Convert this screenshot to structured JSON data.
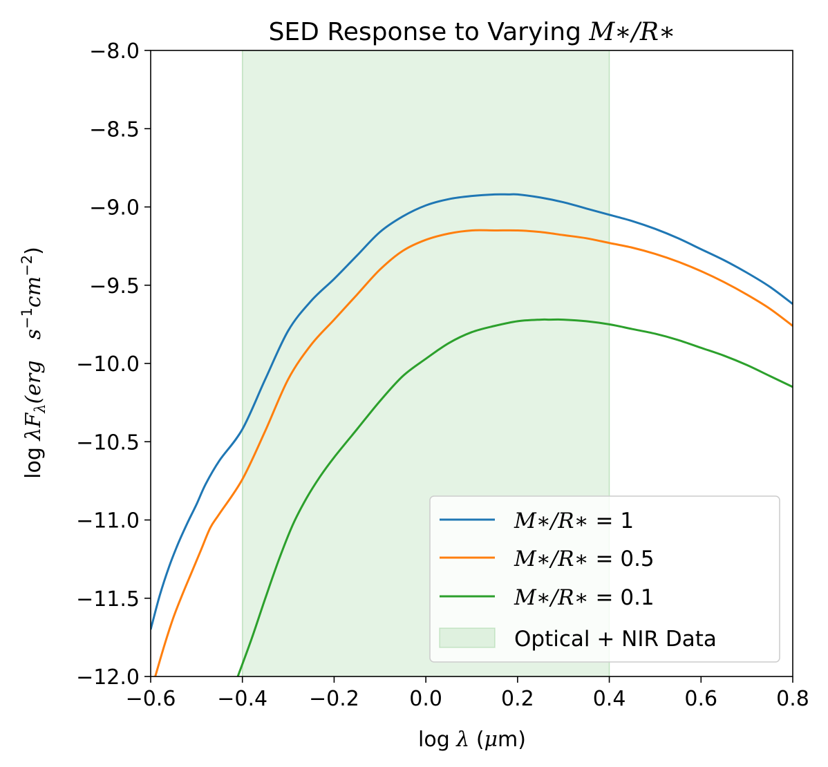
{
  "chart_data": {
    "type": "line",
    "title": "SED Response to Varying M∗/R∗",
    "title_prefix": "SED Response to Varying ",
    "title_math": "M∗/R∗",
    "xlabel": "log λ (μm)",
    "xlabel_parts": {
      "a": "log ",
      "b": "λ",
      "c": " (",
      "d": "μ",
      "e": "m)"
    },
    "ylabel": "log λFλ(erg   s⁻¹cm⁻²)",
    "ylabel_parts": {
      "a": "log ",
      "b": "λF",
      "c": "λ",
      "d": "(erg",
      "e": "s",
      "f": "−1",
      "g": "cm",
      "h": "−2",
      "i": ")"
    },
    "xlim": [
      -0.6,
      0.8
    ],
    "ylim": [
      -12.0,
      -8.0
    ],
    "xticks": [
      -0.6,
      -0.4,
      -0.2,
      0.0,
      0.2,
      0.4,
      0.6,
      0.8
    ],
    "xtick_labels": [
      "−0.6",
      "−0.4",
      "−0.2",
      "0.0",
      "0.2",
      "0.4",
      "0.6",
      "0.8"
    ],
    "yticks": [
      -8.0,
      -8.5,
      -9.0,
      -9.5,
      -10.0,
      -10.5,
      -11.0,
      -11.5,
      -12.0
    ],
    "ytick_labels": [
      "−8.0",
      "−8.5",
      "−9.0",
      "−9.5",
      "−10.0",
      "−10.5",
      "−11.0",
      "−11.5",
      "−12.0"
    ],
    "shaded_region": {
      "name": "Optical + NIR Data",
      "x": [
        -0.4,
        0.4
      ],
      "color": "#2ca02c",
      "alpha": 0.13
    },
    "grid": false,
    "legend_position": "lower-right",
    "series": [
      {
        "name": "M∗/R∗ = 1",
        "color": "#1f77b4",
        "x": [
          -0.6,
          -0.58,
          -0.56,
          -0.54,
          -0.52,
          -0.5,
          -0.48,
          -0.45,
          -0.4,
          -0.35,
          -0.3,
          -0.25,
          -0.2,
          -0.15,
          -0.1,
          -0.05,
          0.0,
          0.05,
          0.1,
          0.15,
          0.18,
          0.2,
          0.25,
          0.3,
          0.35,
          0.4,
          0.45,
          0.5,
          0.55,
          0.6,
          0.65,
          0.7,
          0.75,
          0.8
        ],
        "y": [
          -11.7,
          -11.48,
          -11.3,
          -11.15,
          -11.02,
          -10.9,
          -10.77,
          -10.62,
          -10.42,
          -10.1,
          -9.79,
          -9.6,
          -9.46,
          -9.31,
          -9.16,
          -9.06,
          -8.99,
          -8.95,
          -8.93,
          -8.92,
          -8.92,
          -8.92,
          -8.94,
          -8.97,
          -9.01,
          -9.05,
          -9.09,
          -9.14,
          -9.2,
          -9.27,
          -9.34,
          -9.42,
          -9.51,
          -9.62
        ]
      },
      {
        "name": "M∗/R∗ = 0.5",
        "color": "#ff7f0e",
        "x": [
          -0.59,
          -0.57,
          -0.55,
          -0.53,
          -0.51,
          -0.49,
          -0.47,
          -0.45,
          -0.4,
          -0.35,
          -0.3,
          -0.25,
          -0.2,
          -0.15,
          -0.1,
          -0.05,
          0.0,
          0.05,
          0.1,
          0.15,
          0.2,
          0.25,
          0.3,
          0.35,
          0.4,
          0.45,
          0.5,
          0.55,
          0.6,
          0.65,
          0.7,
          0.75,
          0.8
        ],
        "y": [
          -12.0,
          -11.8,
          -11.62,
          -11.47,
          -11.33,
          -11.19,
          -11.05,
          -10.96,
          -10.74,
          -10.43,
          -10.1,
          -9.88,
          -9.72,
          -9.56,
          -9.4,
          -9.28,
          -9.21,
          -9.17,
          -9.15,
          -9.15,
          -9.15,
          -9.16,
          -9.18,
          -9.2,
          -9.23,
          -9.26,
          -9.3,
          -9.35,
          -9.41,
          -9.48,
          -9.56,
          -9.65,
          -9.76
        ]
      },
      {
        "name": "M∗/R∗ = 0.1",
        "color": "#2ca02c",
        "x": [
          -0.41,
          -0.38,
          -0.35,
          -0.32,
          -0.29,
          -0.26,
          -0.23,
          -0.2,
          -0.15,
          -0.1,
          -0.05,
          0.0,
          0.05,
          0.1,
          0.15,
          0.2,
          0.25,
          0.27,
          0.3,
          0.35,
          0.4,
          0.45,
          0.5,
          0.55,
          0.6,
          0.65,
          0.7,
          0.75,
          0.8
        ],
        "y": [
          -12.0,
          -11.76,
          -11.5,
          -11.25,
          -11.03,
          -10.86,
          -10.72,
          -10.6,
          -10.42,
          -10.24,
          -10.08,
          -9.97,
          -9.87,
          -9.8,
          -9.76,
          -9.73,
          -9.72,
          -9.72,
          -9.72,
          -9.73,
          -9.75,
          -9.78,
          -9.81,
          -9.85,
          -9.9,
          -9.95,
          -10.01,
          -10.08,
          -10.15
        ]
      }
    ]
  },
  "legend": {
    "items": [
      {
        "label_math": "M∗/R∗",
        "label_value": " = 1"
      },
      {
        "label_math": "M∗/R∗",
        "label_value": " = 0.5"
      },
      {
        "label_math": "M∗/R∗",
        "label_value": " = 0.1"
      },
      {
        "label_text": "Optical + NIR Data"
      }
    ]
  }
}
